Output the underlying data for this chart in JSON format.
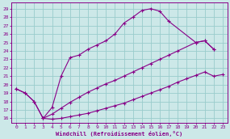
{
  "background_color": "#cce8e8",
  "line_color": "#880088",
  "grid_color": "#99cccc",
  "xlabel": "Windchill (Refroidissement éolien,°C)",
  "xlabel_color": "#880088",
  "tick_color": "#880088",
  "xlim": [
    -0.5,
    23.5
  ],
  "ylim": [
    15.5,
    29.7
  ],
  "yticks": [
    16,
    17,
    18,
    19,
    20,
    21,
    22,
    23,
    24,
    25,
    26,
    27,
    28,
    29
  ],
  "xticks": [
    0,
    1,
    2,
    3,
    4,
    5,
    6,
    7,
    8,
    9,
    10,
    11,
    12,
    13,
    14,
    15,
    16,
    17,
    18,
    19,
    20,
    21,
    22,
    23
  ],
  "line1_x": [
    0,
    1,
    2,
    3,
    4,
    5,
    6,
    7,
    8,
    9,
    10,
    11,
    12,
    13,
    14,
    15,
    16,
    17,
    20,
    21,
    22
  ],
  "line1_y": [
    19.5,
    19.0,
    18.0,
    16.0,
    17.3,
    21.0,
    23.2,
    23.5,
    24.2,
    24.7,
    25.2,
    26.0,
    27.3,
    28.0,
    28.8,
    29.0,
    28.7,
    27.5,
    25.0,
    25.2,
    24.2
  ],
  "line2_x": [
    0,
    1,
    2,
    3,
    4,
    5,
    6,
    7,
    8,
    9,
    10,
    11,
    12,
    13,
    14,
    15,
    16,
    17,
    18,
    20,
    21,
    22
  ],
  "line2_y": [
    19.5,
    19.0,
    18.0,
    16.0,
    16.5,
    17.2,
    17.9,
    18.5,
    19.1,
    19.6,
    20.1,
    20.5,
    21.0,
    21.5,
    22.0,
    22.5,
    23.0,
    23.5,
    24.0,
    25.0,
    25.2,
    24.2
  ],
  "line3_x": [
    3,
    4,
    5,
    6,
    7,
    8,
    9,
    10,
    11,
    12,
    13,
    14,
    15,
    16,
    17,
    18,
    19,
    20,
    21,
    22,
    23
  ],
  "line3_y": [
    16.0,
    15.9,
    16.0,
    16.2,
    16.4,
    16.6,
    16.9,
    17.2,
    17.5,
    17.8,
    18.2,
    18.6,
    19.0,
    19.4,
    19.8,
    20.3,
    20.7,
    21.1,
    21.5,
    21.0,
    21.2
  ]
}
